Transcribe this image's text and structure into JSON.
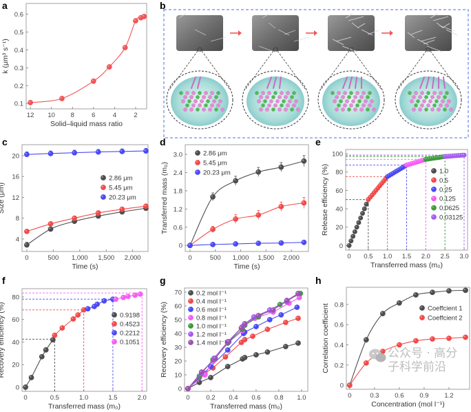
{
  "figure": {
    "watermark": "公众号 · 高分子科学前沿",
    "panel_b": {
      "label": "b",
      "stages": 4
    }
  },
  "chart_data": [
    {
      "id": "a",
      "panel_label": "a",
      "type": "scatter",
      "xlabel": "Solid–liquid mass ratio",
      "ylabel": "k (μm³ s⁻¹)",
      "xlim": [
        12.4,
        0.95
      ],
      "ylim": [
        0.07,
        0.66
      ],
      "x_reversed": true,
      "xticks": [
        12,
        10,
        8,
        6,
        4,
        2
      ],
      "xtick_labels": [
        "12",
        "10",
        "8",
        "6",
        "4",
        "2"
      ],
      "yticks": [
        0.1,
        0.2,
        0.3,
        0.4,
        0.5,
        0.6
      ],
      "ytick_labels": [
        "0.1",
        "0.2",
        "0.3",
        "0.4",
        "0.5",
        "0.6"
      ],
      "series": [
        {
          "color": "#f25555",
          "fit": "smooth",
          "x": [
            12,
            9,
            6,
            4.5,
            3,
            2,
            1.5,
            1.2
          ],
          "y": [
            0.105,
            0.128,
            0.225,
            0.305,
            0.413,
            0.563,
            0.58,
            0.587
          ]
        }
      ]
    },
    {
      "id": "c",
      "panel_label": "c",
      "type": "scatter",
      "xlabel": "Time (s)",
      "ylabel": "Size (μm)",
      "xlim": [
        -90,
        2290
      ],
      "ylim": [
        1.6,
        22.1
      ],
      "xticks": [
        0,
        500,
        1000,
        1500,
        2000
      ],
      "xtick_labels": [
        "0",
        "500",
        "1,000",
        "1,500",
        "2,000"
      ],
      "yticks": [
        4,
        8,
        12,
        16,
        20
      ],
      "ytick_labels": [
        "4",
        "8",
        "12",
        "16",
        "20"
      ],
      "legend": "right-middle",
      "series": [
        {
          "name": "2.86 μm",
          "color": "#4d4d4d",
          "fit": "smooth",
          "x": [
            0,
            450,
            900,
            1350,
            1800,
            2250
          ],
          "y": [
            2.86,
            5.9,
            7.4,
            8.4,
            9.2,
            9.9
          ],
          "yerr": [
            0.5,
            0.3,
            0.4,
            0.4,
            0.4,
            0.4
          ]
        },
        {
          "name": "5.45 μm",
          "color": "#f24a4a",
          "fit": "smooth",
          "x": [
            0,
            450,
            900,
            1350,
            1800,
            2250
          ],
          "y": [
            5.45,
            6.9,
            8.0,
            9.0,
            9.7,
            10.3
          ],
          "yerr": [
            0.3,
            0.3,
            0.3,
            0.4,
            0.4,
            0.4
          ]
        },
        {
          "name": "20.23 μm",
          "color": "#4a4af5",
          "fit": "smooth",
          "x": [
            0,
            450,
            900,
            1350,
            1800,
            2250
          ],
          "y": [
            20.23,
            20.4,
            20.55,
            20.7,
            20.8,
            20.9
          ],
          "yerr": [
            0.5,
            0.5,
            0.5,
            0.5,
            0.5,
            0.5
          ]
        }
      ]
    },
    {
      "id": "d",
      "panel_label": "d",
      "type": "scatter",
      "xlabel": "Time (s)",
      "ylabel": "Transferred mass (m₀)",
      "xlim": [
        -95,
        2340
      ],
      "ylim": [
        -0.2,
        3.32
      ],
      "xticks": [
        0,
        500,
        1000,
        1500,
        2000
      ],
      "xtick_labels": [
        "0",
        "500",
        "1,000",
        "1,500",
        "2,000"
      ],
      "yticks": [
        0,
        0.6,
        1.2,
        1.8,
        2.4,
        3.0
      ],
      "ytick_labels": [
        "0",
        "0.6",
        "1.2",
        "1.8",
        "2.4",
        "3.0"
      ],
      "legend": "top-left",
      "series": [
        {
          "name": "2.86 μm",
          "color": "#4d4d4d",
          "fit": "smooth",
          "x": [
            0,
            450,
            900,
            1350,
            1800,
            2250
          ],
          "y": [
            0,
            1.6,
            2.13,
            2.42,
            2.58,
            2.78
          ],
          "yerr": [
            0,
            0.13,
            0.15,
            0.15,
            0.15,
            0.18
          ]
        },
        {
          "name": "5.45 μm",
          "color": "#f24a4a",
          "fit": "smooth",
          "x": [
            0,
            450,
            900,
            1350,
            1800,
            2250
          ],
          "y": [
            0,
            0.53,
            0.87,
            1.0,
            1.28,
            1.4
          ],
          "yerr": [
            0,
            0.1,
            0.15,
            0.15,
            0.15,
            0.18
          ]
        },
        {
          "name": "20.23 μm",
          "color": "#4a4af5",
          "fit": "smooth",
          "x": [
            0,
            450,
            900,
            1350,
            1800,
            2250
          ],
          "y": [
            0,
            0.03,
            0.05,
            0.07,
            0.08,
            0.1
          ],
          "yerr": [
            0,
            0.02,
            0.02,
            0.02,
            0.02,
            0.02
          ]
        }
      ]
    },
    {
      "id": "e",
      "panel_label": "e",
      "type": "scatter",
      "xlabel": "Transferred mass (m₀)",
      "ylabel": "Release efficiency (%)",
      "xlim": [
        -0.09,
        3.09
      ],
      "ylim": [
        -5,
        104.5
      ],
      "xticks": [
        0,
        0.5,
        1.0,
        1.5,
        2.0,
        2.5,
        3.0
      ],
      "xtick_labels": [
        "0",
        "0.5",
        "1.0",
        "1.5",
        "2.0",
        "2.5",
        "3.0"
      ],
      "yticks": [
        0,
        20,
        40,
        60,
        80,
        100
      ],
      "ytick_labels": [
        "0",
        "20",
        "40",
        "60",
        "80",
        "100"
      ],
      "legend": "right-middle",
      "series": [
        {
          "name": "1.0",
          "color": "#4d4d4d",
          "x": [
            0,
            0.05,
            0.1,
            0.15,
            0.2,
            0.25,
            0.3,
            0.35,
            0.4,
            0.45,
            0.5
          ],
          "y": [
            0,
            5,
            10,
            15,
            20,
            25,
            30,
            35,
            40,
            45,
            50
          ]
        },
        {
          "name": "0.5",
          "color": "#f24a4a",
          "x": [
            0.5,
            0.55,
            0.6,
            0.65,
            0.7,
            0.75,
            0.8,
            0.85,
            0.9,
            0.95,
            1.0
          ],
          "y": [
            50,
            52.5,
            55,
            57.5,
            60,
            62.5,
            65,
            67.5,
            70,
            72.5,
            75
          ]
        },
        {
          "name": "0.25",
          "color": "#4a4af5",
          "x": [
            1.0,
            1.05,
            1.1,
            1.15,
            1.2,
            1.25,
            1.3,
            1.35,
            1.4,
            1.45,
            1.5
          ],
          "y": [
            75,
            76.25,
            77.5,
            78.75,
            80,
            81.25,
            82.5,
            83.75,
            85,
            86.25,
            87.5
          ]
        },
        {
          "name": "0.125",
          "color": "#f55cf5",
          "x": [
            1.5,
            1.55,
            1.6,
            1.65,
            1.7,
            1.75,
            1.8,
            1.85,
            1.9,
            1.95,
            2.0
          ],
          "y": [
            87.5,
            88.1,
            88.75,
            89.4,
            90,
            90.6,
            91.25,
            91.9,
            92.5,
            93.1,
            93.75
          ]
        },
        {
          "name": "0.0625",
          "color": "#3c9a3c",
          "x": [
            2.0,
            2.05,
            2.1,
            2.15,
            2.2,
            2.25,
            2.3,
            2.35,
            2.4,
            2.45,
            2.5
          ],
          "y": [
            93.75,
            94.1,
            94.4,
            94.7,
            95,
            95.3,
            95.6,
            95.9,
            96.25,
            96.6,
            96.9
          ]
        },
        {
          "name": "0.03125",
          "color": "#a55cf0",
          "x": [
            2.5,
            2.55,
            2.6,
            2.65,
            2.7,
            2.75,
            2.8,
            2.85,
            2.9,
            2.95,
            3.0
          ],
          "y": [
            96.9,
            97.0,
            97.2,
            97.3,
            97.5,
            97.7,
            97.8,
            98.0,
            98.1,
            98.3,
            98.4
          ]
        }
      ],
      "guides": [
        {
          "x": 0.5,
          "y": 50,
          "color": "#4d4d4d"
        },
        {
          "x": 1.0,
          "y": 75,
          "color": "#f24a4a"
        },
        {
          "x": 1.5,
          "y": 87.5,
          "color": "#4a4af5"
        },
        {
          "x": 2.0,
          "y": 93.75,
          "color": "#f55cf5"
        },
        {
          "x": 2.5,
          "y": 96.9,
          "color": "#3c9a3c"
        },
        {
          "x": 3.0,
          "y": 98.4,
          "color": "#a55cf0"
        }
      ]
    },
    {
      "id": "f",
      "panel_label": "f",
      "type": "line",
      "xlabel": "Transferred mass (m₀)",
      "ylabel": "Recovery efficiency (%)",
      "xlim": [
        -0.06,
        2.08
      ],
      "ylim": [
        -3.7,
        87.3
      ],
      "xticks": [
        0,
        0.5,
        1.0,
        1.5,
        2.0
      ],
      "xtick_labels": [
        "0",
        "0.5",
        "1.0",
        "1.5",
        "2.0"
      ],
      "yticks": [
        0,
        20,
        40,
        60,
        80
      ],
      "ytick_labels": [
        "0",
        "20",
        "40",
        "60",
        "80"
      ],
      "legend": "right-middle",
      "series": [
        {
          "name": "0.9198",
          "color": "#4d4d4d",
          "x": [
            0,
            0.1,
            0.28,
            0.35,
            0.47
          ],
          "y": [
            0,
            8.5,
            27,
            33,
            42
          ]
        },
        {
          "name": "0.4523",
          "color": "#f24a4a",
          "x": [
            0.5,
            0.63,
            0.82,
            0.9,
            1.0
          ],
          "y": [
            46,
            52.5,
            60.5,
            64,
            68.5
          ]
        },
        {
          "name": "0.2212",
          "color": "#4a4af5",
          "x": [
            1.07,
            1.18,
            1.23,
            1.35,
            1.5
          ],
          "y": [
            69.5,
            71.5,
            73.5,
            76.5,
            78
          ]
        },
        {
          "name": "0.1051",
          "color": "#f55cf5",
          "x": [
            1.55,
            1.68,
            1.76,
            1.88,
            1.97
          ],
          "y": [
            78,
            79.5,
            80.5,
            81.5,
            82.5
          ]
        }
      ],
      "guides": [
        {
          "x": 0.5,
          "y": 42.5,
          "color": "#4d4d4d"
        },
        {
          "x": 1.0,
          "y": 68.5,
          "color": "#f24a4a"
        },
        {
          "x": 1.5,
          "y": 78,
          "color": "#4a4af5"
        },
        {
          "x": 2.0,
          "y": 83.5,
          "color": "#f55cf5"
        }
      ]
    },
    {
      "id": "g",
      "panel_label": "g",
      "type": "line",
      "xlabel": "Transferred mass (m₀)",
      "ylabel": "Recovery efficiency (%)",
      "xlim": [
        -0.03,
        1.055
      ],
      "ylim": [
        -2,
        73
      ],
      "xticks": [
        0,
        0.2,
        0.4,
        0.6,
        0.8,
        1.0
      ],
      "xtick_labels": [
        "0",
        "0.2",
        "0.4",
        "0.6",
        "0.8",
        "1.0"
      ],
      "yticks": [
        0,
        10,
        20,
        30,
        40,
        50,
        60,
        70
      ],
      "ytick_labels": [
        "0",
        "10",
        "20",
        "30",
        "40",
        "50",
        "60",
        "70"
      ],
      "legend": "top-left",
      "series": [
        {
          "name": "0.2 mol l⁻¹",
          "color": "#4d4d4d",
          "x": [
            0,
            0.1,
            0.2,
            0.35,
            0.48,
            0.5,
            0.6,
            0.7,
            0.86,
            0.97
          ],
          "y": [
            0,
            4.5,
            8,
            16,
            21.5,
            22.5,
            24.5,
            26.5,
            30.5,
            33
          ]
        },
        {
          "name": "0.4 mol l⁻¹",
          "color": "#f24a4a",
          "x": [
            0,
            0.15,
            0.22,
            0.33,
            0.47,
            0.5,
            0.57,
            0.7,
            0.86,
            0.97
          ],
          "y": [
            0,
            11,
            15,
            23,
            33.5,
            35.5,
            38,
            43,
            48,
            51
          ]
        },
        {
          "name": "0.6 mol l⁻¹",
          "color": "#4a4af5",
          "x": [
            0,
            0.1,
            0.2,
            0.35,
            0.49,
            0.5,
            0.6,
            0.72,
            0.82,
            0.96
          ],
          "y": [
            0,
            8,
            16,
            28,
            40,
            41,
            45,
            50,
            53.5,
            59
          ]
        },
        {
          "name": "0.8 mol l⁻¹",
          "color": "#f55cf5",
          "x": [
            0,
            0.15,
            0.22,
            0.35,
            0.48,
            0.5,
            0.59,
            0.75,
            0.89,
            0.98
          ],
          "y": [
            0,
            10,
            20,
            33,
            42,
            46,
            51,
            55.5,
            62,
            66
          ]
        },
        {
          "name": "1.0 mol l⁻¹",
          "color": "#3c9a3c",
          "x": [
            0,
            0.1,
            0.22,
            0.35,
            0.48,
            0.5,
            0.62,
            0.72,
            0.81,
            0.99
          ],
          "y": [
            0,
            9,
            21,
            33,
            43,
            46,
            52,
            57,
            61,
            69
          ]
        },
        {
          "name": "1.2 mol l⁻¹",
          "color": "#a55cf0",
          "x": [
            0,
            0.12,
            0.23,
            0.35,
            0.48,
            0.5,
            0.58,
            0.72,
            0.87,
            0.97
          ],
          "y": [
            0,
            11,
            22,
            34,
            45,
            47,
            52,
            57,
            63,
            69
          ]
        },
        {
          "name": "1.4 mol l⁻¹",
          "color": "#9a52b0",
          "x": [
            0,
            0.12,
            0.24,
            0.36,
            0.47,
            0.5,
            0.62,
            0.75,
            0.87,
            0.97
          ],
          "y": [
            0,
            12,
            22,
            34,
            44,
            47,
            53,
            57,
            64,
            69
          ]
        }
      ]
    },
    {
      "id": "h",
      "panel_label": "h",
      "type": "scatter",
      "xlabel": "Concentration (mol l⁻¹)",
      "ylabel": "Correlation coefficient",
      "xlim": [
        -0.04,
        1.45
      ],
      "ylim": [
        -0.04,
        0.97
      ],
      "xticks": [
        0,
        0.3,
        0.6,
        0.9,
        1.2
      ],
      "xtick_labels": [
        "0",
        "0.3",
        "0.6",
        "0.9",
        "1.2"
      ],
      "yticks": [
        0,
        0.2,
        0.4,
        0.6,
        0.8
      ],
      "ytick_labels": [
        "0",
        "0.2",
        "0.4",
        "0.6",
        "0.8"
      ],
      "legend": "right-upper",
      "series": [
        {
          "name": "Coeffcient 1",
          "color": "#4d4d4d",
          "fit": "smooth",
          "x": [
            0,
            0.2,
            0.4,
            0.6,
            0.8,
            1.0,
            1.2,
            1.4
          ],
          "y": [
            0,
            0.45,
            0.71,
            0.815,
            0.895,
            0.92,
            0.935,
            0.94
          ]
        },
        {
          "name": "Coeffcient 2",
          "color": "#f24a4a",
          "fit": "smooth",
          "x": [
            0,
            0.2,
            0.4,
            0.6,
            0.8,
            1.0,
            1.2,
            1.4
          ],
          "y": [
            0,
            0.22,
            0.335,
            0.4,
            0.44,
            0.458,
            0.465,
            0.475
          ]
        }
      ]
    }
  ]
}
